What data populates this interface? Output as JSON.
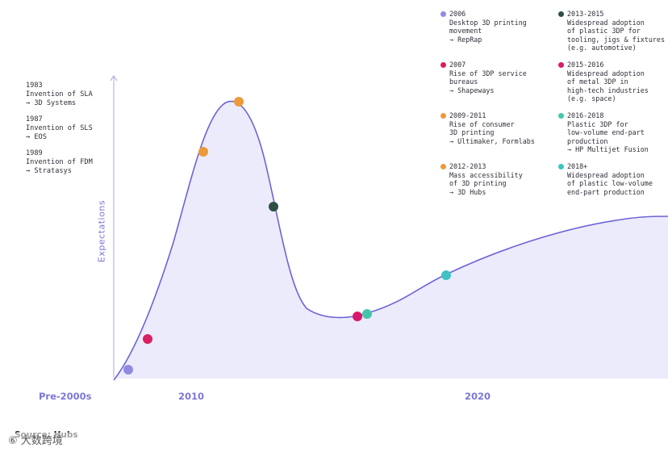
{
  "chart_data": {
    "type": "line",
    "ylabel": "Expectations",
    "x_tick_labels": [
      "Pre-2000s",
      "2010",
      "2020"
    ],
    "colors": {
      "curve": "#6c63d9",
      "fill": "#ecebfb",
      "axis": "#a9a6e6",
      "label": "#7b78d6"
    },
    "milestones": [
      {
        "year": "2006",
        "text": "Desktop 3D printing\nmovement\n→ RepRap",
        "color": "#8f8be0"
      },
      {
        "year": "2007",
        "text": "Rise of 3DP service\nbureaus\n→ Shapeways",
        "color": "#d91f5f"
      },
      {
        "year": "2009-2011",
        "text": "Rise of consumer\n3D printing\n→ Ultimaker, Formlabs",
        "color": "#ec9a3a"
      },
      {
        "year": "2012-2013",
        "text": "Mass accessibility\nof 3D printing\n→ 3D Hubs",
        "color": "#ec9a3a"
      },
      {
        "year": "2013-2015",
        "text": "Widespread adoption\nof plastic 3DP for\ntooling, jigs & fixtures\n(e.g. automotive)",
        "color": "#2f4f44"
      },
      {
        "year": "2015-2016",
        "text": "Widespread adoption\nof metal 3DP in\nhigh-tech industries\n(e.g. space)",
        "color": "#d9196a"
      },
      {
        "year": "2016-2018",
        "text": "Plastic 3DP for\nlow-volume end-part\nproduction\n→ HP Multijet Fusion",
        "color": "#45c6a9"
      },
      {
        "year": "2018+",
        "text": "Widespread adoption\nof plastic low-volume\nend-part production",
        "color": "#3fc3c1"
      }
    ],
    "early_history": [
      {
        "year": "1983",
        "text": "Invention of SLA\n→ 3D Systems"
      },
      {
        "year": "1987",
        "text": "Invention of SLS\n→ EOS"
      },
      {
        "year": "1989",
        "text": "Invention of FDM\n→ Stratasys"
      }
    ]
  },
  "source": "Source: Hubs",
  "watermark": "⑥ 大数跨境"
}
